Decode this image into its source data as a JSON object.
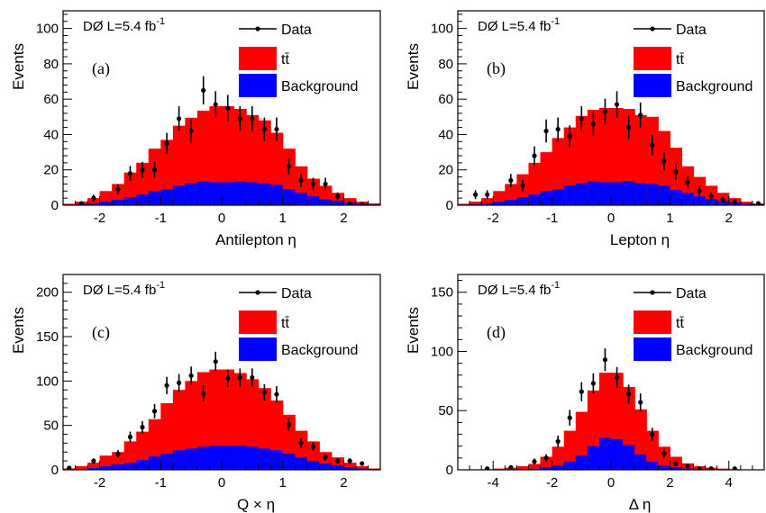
{
  "chart_data": [
    {
      "type": "bar",
      "panel_tag": "(a)",
      "experiment": "DØ L=5.4 fb",
      "experiment_sup": "-1",
      "xlabel": "Antilepton η",
      "ylabel": "Events",
      "xlim": [
        -2.6,
        2.6
      ],
      "ylim": [
        0,
        110
      ],
      "xticks": [
        -2,
        -1,
        0,
        1,
        2
      ],
      "yticks": [
        0,
        20,
        40,
        60,
        80,
        100
      ],
      "bin_edges": [
        -2.6,
        -2.4,
        -2.2,
        -2.0,
        -1.8,
        -1.6,
        -1.4,
        -1.2,
        -1.0,
        -0.8,
        -0.6,
        -0.4,
        -0.2,
        0.0,
        0.2,
        0.4,
        0.6,
        0.8,
        1.0,
        1.2,
        1.4,
        1.6,
        1.8,
        2.0,
        2.2,
        2.4,
        2.6
      ],
      "legend": [
        "Data",
        "tt̄",
        "Background"
      ],
      "series": [
        {
          "name": "Background",
          "color": "#0000ff",
          "values": [
            0.3,
            0.5,
            1,
            2,
            3,
            4.5,
            6,
            8,
            9,
            11,
            12.5,
            13.5,
            13,
            13,
            13.5,
            13,
            12.5,
            11.5,
            9,
            7,
            5,
            3.5,
            2.5,
            1.5,
            0.8,
            0.4
          ]
        },
        {
          "name": "tt̄",
          "color": "#ff0000",
          "values": [
            0.5,
            1.5,
            3,
            6,
            9,
            14,
            18,
            24,
            28,
            34,
            37,
            40,
            43,
            43,
            41,
            38,
            35.5,
            29.5,
            23,
            15,
            10,
            7.5,
            4.5,
            2.5,
            1.2,
            0.6
          ]
        },
        {
          "name": "Data",
          "color": "#000000",
          "x": [
            -2.3,
            -2.1,
            -1.7,
            -1.5,
            -1.3,
            -1.1,
            -0.9,
            -0.7,
            -0.5,
            -0.3,
            -0.1,
            0.1,
            0.3,
            0.5,
            0.7,
            0.9,
            1.1,
            1.3,
            1.5,
            1.7,
            1.9,
            2.1,
            2.3
          ],
          "values": [
            1,
            4,
            9,
            18,
            20,
            20,
            35,
            49,
            42,
            65,
            57,
            55,
            49,
            49,
            43,
            43,
            22,
            14,
            12,
            12,
            5,
            1,
            0.5
          ],
          "errors": [
            1,
            2,
            3,
            4.2,
            4.5,
            4.5,
            5.9,
            7,
            6.5,
            8,
            7.5,
            7.4,
            7,
            7,
            6.6,
            6.6,
            4.7,
            3.7,
            3.5,
            3.5,
            2.2,
            1,
            0.7
          ]
        }
      ]
    },
    {
      "type": "bar",
      "panel_tag": "(b)",
      "experiment": "DØ L=5.4 fb",
      "experiment_sup": "-1",
      "xlabel": "Lepton η",
      "ylabel": "Events",
      "xlim": [
        -2.6,
        2.6
      ],
      "ylim": [
        0,
        110
      ],
      "xticks": [
        -2,
        -1,
        0,
        1,
        2
      ],
      "yticks": [
        0,
        20,
        40,
        60,
        80,
        100
      ],
      "bin_edges": [
        -2.6,
        -2.4,
        -2.2,
        -2.0,
        -1.8,
        -1.6,
        -1.4,
        -1.2,
        -1.0,
        -0.8,
        -0.6,
        -0.4,
        -0.2,
        0.0,
        0.2,
        0.4,
        0.6,
        0.8,
        1.0,
        1.2,
        1.4,
        1.6,
        1.8,
        2.0,
        2.2,
        2.4,
        2.6
      ],
      "legend": [
        "Data",
        "tt̄",
        "Background"
      ],
      "series": [
        {
          "name": "Background",
          "color": "#0000ff",
          "values": [
            0.3,
            0.5,
            1,
            2,
            3,
            4.5,
            6,
            8,
            9,
            11,
            12.5,
            13.5,
            13,
            13,
            13.5,
            12.5,
            12,
            11,
            8.5,
            7,
            5,
            3.5,
            2.5,
            1.5,
            0.8,
            0.4
          ]
        },
        {
          "name": "tt̄",
          "color": "#ff0000",
          "values": [
            0.5,
            1.5,
            3,
            6,
            9,
            13,
            18,
            22,
            29,
            33,
            38,
            40.5,
            42,
            42,
            41,
            38.5,
            38,
            31,
            24,
            15,
            11,
            7.5,
            4.5,
            2.5,
            1.2,
            0.6
          ]
        },
        {
          "name": "Data",
          "color": "#000000",
          "x": [
            -2.3,
            -2.1,
            -1.7,
            -1.5,
            -1.3,
            -1.1,
            -0.9,
            -0.7,
            -0.5,
            -0.3,
            -0.1,
            0.1,
            0.3,
            0.5,
            0.7,
            0.9,
            1.1,
            1.3,
            1.5,
            1.7,
            1.9,
            2.1,
            2.5
          ],
          "values": [
            6,
            6,
            14,
            11,
            28,
            42,
            43,
            39,
            49,
            46,
            53,
            57,
            44,
            51,
            34,
            25,
            19,
            13,
            8,
            5,
            3,
            2,
            1
          ],
          "errors": [
            2.5,
            2.5,
            3.7,
            3.3,
            5.3,
            6.5,
            6.6,
            6.2,
            7,
            6.8,
            7.3,
            7.5,
            6.6,
            7.1,
            5.8,
            5,
            4.4,
            3.6,
            2.8,
            2.2,
            1.7,
            1.4,
            1
          ]
        }
      ]
    },
    {
      "type": "bar",
      "panel_tag": "(c)",
      "experiment": "DØ L=5.4 fb",
      "experiment_sup": "-1",
      "xlabel": "Q × η",
      "ylabel": "Events",
      "xlim": [
        -2.6,
        2.6
      ],
      "ylim": [
        0,
        220
      ],
      "xticks": [
        -2,
        -1,
        0,
        1,
        2
      ],
      "yticks": [
        0,
        50,
        100,
        150,
        200
      ],
      "bin_edges": [
        -2.6,
        -2.4,
        -2.2,
        -2.0,
        -1.8,
        -1.6,
        -1.4,
        -1.2,
        -1.0,
        -0.8,
        -0.6,
        -0.4,
        -0.2,
        0.0,
        0.2,
        0.4,
        0.6,
        0.8,
        1.0,
        1.2,
        1.4,
        1.6,
        1.8,
        2.0,
        2.2,
        2.4,
        2.6
      ],
      "legend": [
        "Data",
        "tt̄",
        "Background"
      ],
      "series": [
        {
          "name": "Background",
          "color": "#0000ff",
          "values": [
            0.5,
            1,
            2,
            4,
            6,
            8,
            11,
            15,
            18,
            22,
            24,
            26,
            27,
            27,
            27,
            26,
            24,
            22,
            18,
            14,
            10,
            7,
            5,
            3,
            1.5,
            0.5
          ]
        },
        {
          "name": "tt̄",
          "color": "#ff0000",
          "values": [
            1,
            3,
            6,
            12,
            14,
            24,
            32,
            42,
            57,
            68,
            76,
            84,
            86,
            86,
            82,
            76,
            68,
            56,
            44,
            30,
            22,
            13,
            9,
            5,
            2.5,
            1
          ]
        },
        {
          "name": "Data",
          "color": "#000000",
          "x": [
            -2.5,
            -2.1,
            -1.7,
            -1.5,
            -1.3,
            -1.1,
            -0.9,
            -0.7,
            -0.5,
            -0.3,
            -0.1,
            0.1,
            0.3,
            0.5,
            0.7,
            0.9,
            1.1,
            1.3,
            1.5,
            1.7,
            1.9,
            2.1,
            2.3
          ],
          "values": [
            2,
            10,
            18,
            37,
            48,
            66,
            95,
            98,
            106,
            86,
            122,
            103,
            104,
            104,
            87,
            85,
            51,
            30,
            26,
            14,
            10,
            10,
            7
          ],
          "errors": [
            1.4,
            3.2,
            4.2,
            6,
            7,
            8.1,
            9.7,
            9.9,
            10.3,
            9.3,
            11,
            10.1,
            10.2,
            10.2,
            9.3,
            9.2,
            7.1,
            5.5,
            5.1,
            3.7,
            3.2,
            3.2,
            2.6
          ]
        }
      ]
    },
    {
      "type": "bar",
      "panel_tag": "(d)",
      "experiment": "DØ L=5.4 fb",
      "experiment_sup": "-1",
      "xlabel": "Δ η",
      "ylabel": "Events",
      "xlim": [
        -5.2,
        5.2
      ],
      "ylim": [
        0,
        165
      ],
      "xticks": [
        -4,
        -2,
        0,
        2,
        4
      ],
      "yticks": [
        0,
        50,
        100,
        150
      ],
      "bin_edges": [
        -5.2,
        -4.8,
        -4.4,
        -4.0,
        -3.6,
        -3.2,
        -2.8,
        -2.4,
        -2.0,
        -1.6,
        -1.2,
        -0.8,
        -0.4,
        0.0,
        0.4,
        0.8,
        1.2,
        1.6,
        2.0,
        2.4,
        2.8,
        3.2,
        3.6,
        4.0,
        4.4,
        4.8,
        5.2
      ],
      "legend": [
        "Data",
        "tt̄",
        "Background"
      ],
      "series": [
        {
          "name": "Background",
          "color": "#0000ff",
          "values": [
            0,
            0,
            0,
            0,
            0.3,
            0.5,
            1,
            2,
            3.5,
            7,
            12,
            20,
            27,
            26,
            21,
            13,
            7,
            3.5,
            2,
            1,
            0.5,
            0.3,
            0,
            0,
            0,
            0
          ]
        },
        {
          "name": "tt̄",
          "color": "#ff0000",
          "values": [
            0,
            0.3,
            0.5,
            1,
            1.5,
            2.5,
            4,
            9,
            16,
            26,
            37,
            47,
            55,
            56,
            49,
            38,
            26,
            16,
            9,
            4.5,
            2.5,
            1.5,
            1,
            0.5,
            0.3,
            0
          ]
        },
        {
          "name": "Data",
          "color": "#000000",
          "x": [
            -4.2,
            -3.4,
            -2.6,
            -2.2,
            -1.8,
            -1.4,
            -1.0,
            -0.6,
            -0.2,
            0.2,
            0.6,
            1.0,
            1.4,
            1.8,
            2.2,
            2.6,
            3.0,
            3.4,
            4.2
          ],
          "values": [
            1,
            2,
            7,
            10,
            24,
            44,
            66,
            73,
            93,
            78,
            64,
            57,
            30,
            14,
            5,
            3,
            1,
            1,
            1
          ],
          "errors": [
            1,
            1.4,
            2.6,
            3.2,
            4.9,
            6.6,
            8.1,
            8.5,
            9.6,
            8.8,
            8,
            7.5,
            5.5,
            3.7,
            2.2,
            1.7,
            1,
            1,
            1
          ]
        }
      ]
    }
  ]
}
